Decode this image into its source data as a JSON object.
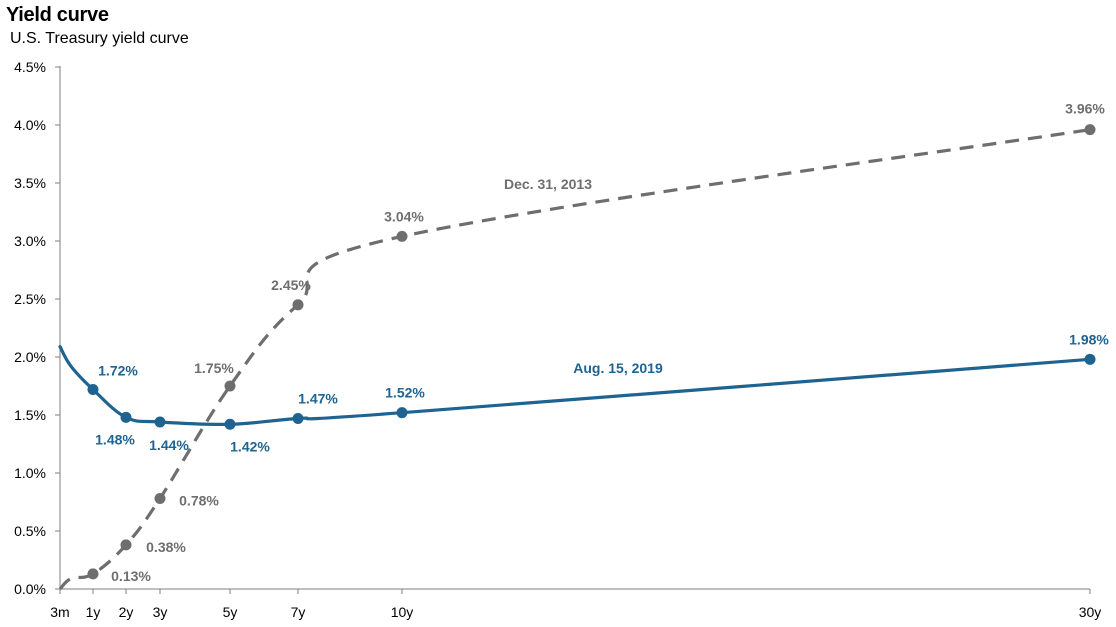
{
  "header": {
    "title": "Yield curve",
    "subtitle": "U.S. Treasury yield curve"
  },
  "colors": {
    "aug_2019": "#1F6391",
    "dec_2013": "#6E6E6E",
    "axis": "#7F7F7F"
  },
  "chart_data": {
    "type": "line",
    "title": "Yield curve",
    "subtitle": "U.S. Treasury yield curve",
    "xlabel": "",
    "ylabel": "",
    "x_ticks": [
      {
        "label": "3m",
        "years": 0.25
      },
      {
        "label": "1y",
        "years": 1
      },
      {
        "label": "2y",
        "years": 2
      },
      {
        "label": "3y",
        "years": 3
      },
      {
        "label": "5y",
        "years": 5
      },
      {
        "label": "7y",
        "years": 7
      },
      {
        "label": "10y",
        "years": 10
      },
      {
        "label": "30y",
        "years": 30
      }
    ],
    "y_ticks": [
      "0.0%",
      "0.5%",
      "1.0%",
      "1.5%",
      "2.0%",
      "2.5%",
      "3.0%",
      "3.5%",
      "4.0%",
      "4.5%"
    ],
    "ylim": [
      0,
      4.5
    ],
    "grid": false,
    "series": [
      {
        "name": "Aug. 15, 2019",
        "style": "solid",
        "color": "#1F6391",
        "points": [
          {
            "x": 0.25,
            "y": 2.09,
            "label": "",
            "marker": false
          },
          {
            "x": 0.5,
            "y": 1.92,
            "label": "",
            "marker": false
          },
          {
            "x": 1,
            "y": 1.72,
            "label": "1.72%",
            "marker": true
          },
          {
            "x": 2,
            "y": 1.48,
            "label": "1.48%",
            "marker": true
          },
          {
            "x": 3,
            "y": 1.44,
            "label": "1.44%",
            "marker": true
          },
          {
            "x": 5,
            "y": 1.42,
            "label": "1.42%",
            "marker": true
          },
          {
            "x": 7,
            "y": 1.47,
            "label": "1.47%",
            "marker": true
          },
          {
            "x": 10,
            "y": 1.52,
            "label": "1.52%",
            "marker": true
          },
          {
            "x": 30,
            "y": 1.98,
            "label": "1.98%",
            "marker": true
          }
        ]
      },
      {
        "name": "Dec. 31, 2013",
        "style": "dashed",
        "color": "#6E6E6E",
        "points": [
          {
            "x": 0.25,
            "y": 0.0,
            "label": "",
            "marker": false
          },
          {
            "x": 0.5,
            "y": 0.09,
            "label": "",
            "marker": false
          },
          {
            "x": 1,
            "y": 0.13,
            "label": "0.13%",
            "marker": true
          },
          {
            "x": 2,
            "y": 0.38,
            "label": "0.38%",
            "marker": true
          },
          {
            "x": 3,
            "y": 0.78,
            "label": "0.78%",
            "marker": true
          },
          {
            "x": 5,
            "y": 1.75,
            "label": "1.75%",
            "marker": true
          },
          {
            "x": 7,
            "y": 2.45,
            "label": "2.45%",
            "marker": true
          },
          {
            "x": 10,
            "y": 3.04,
            "label": "3.04%",
            "marker": true
          },
          {
            "x": 30,
            "y": 3.96,
            "label": "3.96%",
            "marker": true
          }
        ]
      }
    ]
  }
}
